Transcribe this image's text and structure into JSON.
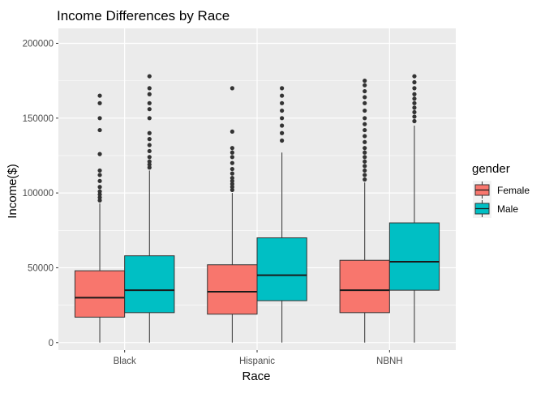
{
  "chart_data": {
    "type": "boxplot",
    "title": "Income Differences by Race",
    "xlabel": "Race",
    "ylabel": "Income($)",
    "ylim": [
      -5000,
      210000
    ],
    "yticks": [
      0,
      50000,
      100000,
      150000,
      200000
    ],
    "ytick_labels": [
      "0",
      "50000",
      "100000",
      "150000",
      "200000"
    ],
    "categories": [
      "Black",
      "Hispanic",
      "NBNH"
    ],
    "legend": {
      "title": "gender",
      "position": "right"
    },
    "grid": true,
    "series": [
      {
        "name": "Female",
        "color": "#F8766D",
        "boxes": [
          {
            "min": 0,
            "q1": 17000,
            "median": 30000,
            "q3": 48000,
            "max": 93000,
            "outliers": [
              95000,
              97000,
              99000,
              101000,
              104000,
              108000,
              112000,
              115000,
              126000,
              142000,
              150000,
              160000,
              165000
            ]
          },
          {
            "min": 0,
            "q1": 19000,
            "median": 34000,
            "q3": 52000,
            "max": 100000,
            "outliers": [
              102000,
              104000,
              106000,
              108000,
              110000,
              113000,
              116000,
              120000,
              124000,
              127000,
              130000,
              141000,
              170000
            ]
          },
          {
            "min": 0,
            "q1": 20000,
            "median": 35000,
            "q3": 55000,
            "max": 107000,
            "outliers": [
              109000,
              112000,
              115000,
              118000,
              121000,
              124000,
              127000,
              130000,
              134000,
              138000,
              142000,
              146000,
              150000,
              155000,
              160000,
              164000,
              168000,
              172000,
              175000
            ]
          }
        ]
      },
      {
        "name": "Male",
        "color": "#00BFC4",
        "boxes": [
          {
            "min": 0,
            "q1": 20000,
            "median": 35000,
            "q3": 58000,
            "max": 115000,
            "outliers": [
              117000,
              119000,
              121000,
              124000,
              128000,
              132000,
              136000,
              140000,
              150000,
              156000,
              160000,
              166000,
              170000,
              178000
            ]
          },
          {
            "min": 0,
            "q1": 28000,
            "median": 45000,
            "q3": 70000,
            "max": 127000,
            "outliers": [
              135000,
              140000,
              145000,
              150000,
              155000,
              160000,
              165000,
              170000
            ]
          },
          {
            "min": 0,
            "q1": 35000,
            "median": 54000,
            "q3": 80000,
            "max": 145000,
            "outliers": [
              148000,
              151000,
              154000,
              157000,
              160000,
              163000,
              166000,
              170000,
              174000,
              178000
            ]
          }
        ]
      }
    ]
  }
}
